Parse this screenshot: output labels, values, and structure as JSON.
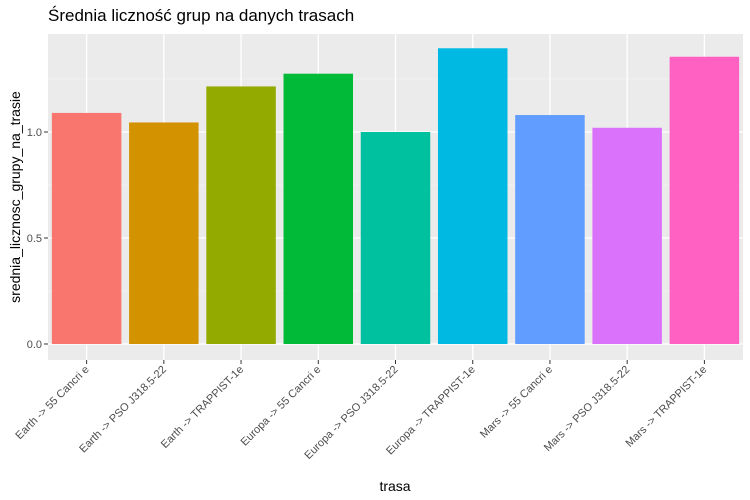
{
  "chart_data": {
    "type": "bar",
    "title": "Średnia liczność grup na danych trasach",
    "xlabel": "trasa",
    "ylabel": "srednia_licznosc_grupy_na_trasie",
    "categories": [
      "Earth -> 55 Cancri e",
      "Earth -> PSO J318.5-22",
      "Earth -> TRAPPIST-1e",
      "Europa -> 55 Cancri e",
      "Europa -> PSO J318.5-22",
      "Europa -> TRAPPIST-1e",
      "Mars -> 55 Cancri e",
      "Mars -> PSO J318.5-22",
      "Mars -> TRAPPIST-1e"
    ],
    "values": [
      1.09,
      1.045,
      1.215,
      1.275,
      1.0,
      1.395,
      1.08,
      1.02,
      1.355
    ],
    "colors": [
      "#F8766D",
      "#D39200",
      "#93AA00",
      "#00BA38",
      "#00C19F",
      "#00B9E3",
      "#619CFF",
      "#DB72FB",
      "#FF61C3"
    ],
    "ylim": [
      0,
      1.45
    ],
    "yticks": [
      0.0,
      0.5,
      1.0
    ],
    "ytick_labels": [
      "0.0",
      "0.5",
      "1.0"
    ],
    "grid": true,
    "legend": "none"
  }
}
